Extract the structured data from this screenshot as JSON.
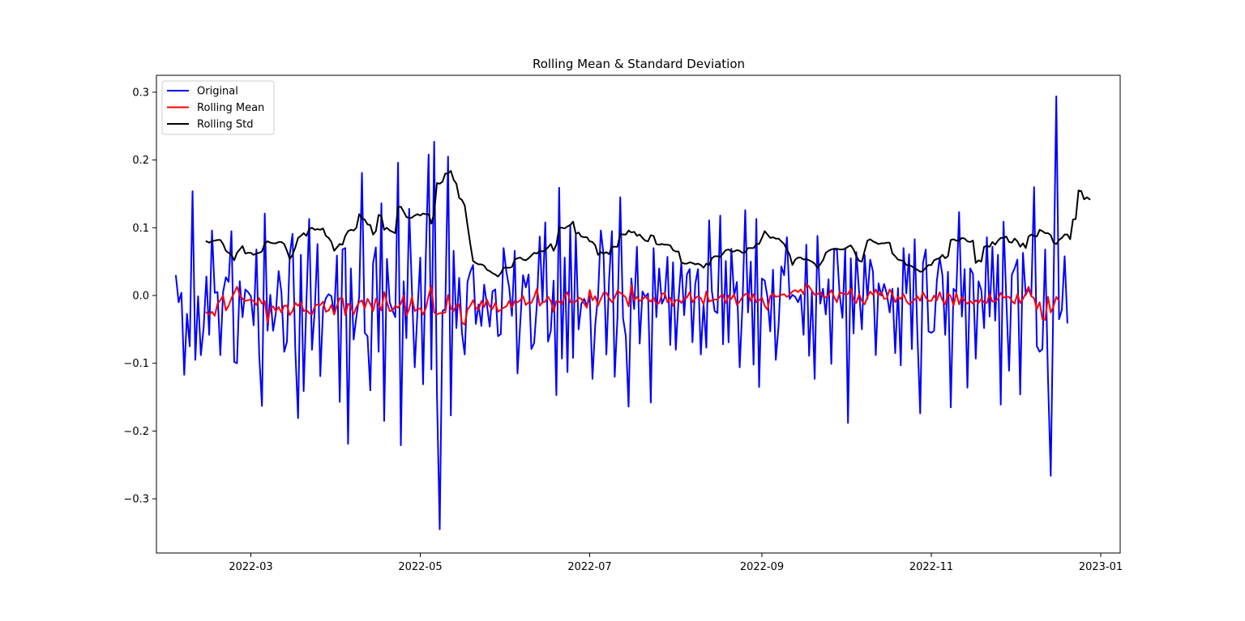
{
  "chart_data": {
    "type": "line",
    "title": "Rolling Mean & Standard Deviation",
    "xlabel": "",
    "ylabel": "",
    "x_start": "2022-02-02",
    "x_end": "2022-12-31",
    "xlim": [
      "2022-01-26",
      "2023-01-08"
    ],
    "ylim": [
      -0.38,
      0.325
    ],
    "xticks": [
      "2022-03",
      "2022-05",
      "2022-07",
      "2022-09",
      "2022-11",
      "2023-01"
    ],
    "yticks": [
      -0.3,
      -0.2,
      -0.1,
      0.0,
      0.1,
      0.2,
      0.3
    ],
    "ytick_labels": [
      "−0.3",
      "−0.2",
      "−0.1",
      "0.0",
      "0.1",
      "0.2",
      "0.3"
    ],
    "grid": false,
    "legend_position": "upper-left",
    "rolling_window": 12,
    "series": [
      {
        "name": "Original",
        "color": "#0000ff",
        "values": [
          0.029,
          -0.01,
          0.004,
          -0.117,
          -0.027,
          -0.075,
          0.154,
          -0.095,
          -0.001,
          -0.088,
          -0.047,
          0.028,
          -0.058,
          0.096,
          0.004,
          0.005,
          -0.088,
          0.005,
          0.027,
          0.02,
          0.095,
          -0.098,
          -0.1,
          0.021,
          -0.032,
          0.009,
          0.005,
          -0.001,
          -0.044,
          0.068,
          -0.087,
          -0.163,
          0.121,
          -0.052,
          0.001,
          -0.052,
          -0.026,
          0.036,
          0.005,
          -0.083,
          -0.068,
          0.06,
          0.091,
          -0.08,
          -0.181,
          0.06,
          -0.141,
          -0.01,
          0.113,
          -0.08,
          -0.022,
          0.076,
          -0.119,
          -0.019,
          -0.004,
          0.002,
          -0.001,
          -0.028,
          0.059,
          -0.157,
          0.068,
          0.07,
          -0.219,
          0.04,
          -0.065,
          -0.031,
          -0.002,
          0.181,
          -0.055,
          -0.06,
          -0.14,
          0.047,
          0.071,
          -0.083,
          0.136,
          -0.185,
          0.054,
          -0.01,
          -0.022,
          -0.032,
          0.196,
          -0.221,
          0.021,
          -0.063,
          0.128,
          0.007,
          -0.106,
          -0.023,
          0.056,
          -0.131,
          0.059,
          0.208,
          -0.109,
          0.227,
          -0.145,
          -0.345,
          -0.023,
          -0.02,
          0.205,
          -0.177,
          0.066,
          -0.048,
          0.026,
          -0.055,
          -0.087,
          0.02,
          0.035,
          0.045,
          -0.042,
          -0.013,
          -0.045,
          0.016,
          -0.014,
          -0.046,
          0.006,
          0.009,
          -0.06,
          -0.057,
          0.07,
          0.035,
          0.012,
          -0.03,
          0.066,
          -0.115,
          -0.04,
          0.03,
          0.012,
          0.031,
          -0.079,
          -0.07,
          -0.012,
          0.087,
          -0.01,
          0.108,
          -0.068,
          -0.052,
          0.022,
          -0.147,
          0.159,
          -0.093,
          0.056,
          -0.113,
          0.104,
          -0.092,
          0.09,
          -0.05,
          -0.012,
          -0.005,
          -0.015,
          -0.001,
          -0.123,
          -0.043,
          -0.001,
          0.096,
          0.06,
          -0.087,
          0.025,
          0.095,
          -0.12,
          -0.032,
          0.145,
          -0.033,
          -0.06,
          -0.164,
          0.025,
          -0.02,
          0.072,
          -0.071,
          0.006,
          -0.002,
          0.003,
          -0.158,
          0.07,
          -0.032,
          0.04,
          -0.012,
          -0.003,
          0.057,
          -0.073,
          0.049,
          -0.08,
          -0.005,
          0.049,
          -0.029,
          0.031,
          0.039,
          -0.069,
          0.017,
          0.039,
          -0.087,
          -0.012,
          -0.077,
          0.111,
          0.006,
          -0.023,
          -0.026,
          0.118,
          -0.072,
          0.051,
          -0.069,
          0.069,
          -0.001,
          0.02,
          -0.106,
          -0.014,
          0.126,
          -0.025,
          0.05,
          -0.102,
          0.113,
          -0.135,
          0.025,
          0.022,
          -0.002,
          -0.053,
          0.038,
          -0.095,
          -0.045,
          0.043,
          0.03,
          0.086,
          -0.005,
          0.001,
          -0.002,
          -0.01,
          0.001,
          -0.058,
          0.075,
          -0.089,
          0.005,
          -0.123,
          0.088,
          -0.012,
          0.01,
          -0.028,
          0.024,
          -0.101,
          0.068,
          0.068,
          0.001,
          -0.033,
          0.07,
          -0.188,
          0.055,
          -0.056,
          0.064,
          0.005,
          -0.05,
          0.06,
          -0.005,
          0.053,
          0.035,
          -0.088,
          0.018,
          0.0,
          0.017,
          0.002,
          -0.025,
          0.01,
          -0.085,
          0.011,
          -0.103,
          0.07,
          0.003,
          0.061,
          -0.079,
          0.083,
          -0.058,
          -0.174,
          0.048,
          0.068,
          -0.053,
          -0.055,
          -0.052,
          0.022,
          0.056,
          0.03,
          -0.058,
          0.035,
          -0.165,
          0.01,
          0.005,
          0.123,
          -0.031,
          0.039,
          -0.136,
          0.04,
          0.032,
          -0.093,
          0.021,
          0.008,
          -0.048,
          0.086,
          -0.031,
          0.072,
          -0.037,
          0.06,
          -0.161,
          0.109,
          -0.005,
          -0.111,
          0.031,
          0.04,
          0.053,
          -0.146,
          0.063,
          0.001,
          0.01,
          -0.001,
          0.16,
          -0.075,
          -0.083,
          -0.079,
          0.068,
          -0.12,
          -0.266,
          0.011,
          0.294,
          -0.035,
          -0.021,
          0.058,
          -0.04
        ]
      },
      {
        "name": "Rolling Mean",
        "color": "#ff0000",
        "values": [
          null,
          null,
          null,
          null,
          null,
          null,
          null,
          null,
          null,
          null,
          null,
          -0.025,
          -0.028,
          -0.024,
          -0.03,
          -0.012,
          -0.007,
          0.0,
          -0.022,
          -0.015,
          -0.004,
          0.004,
          0.013,
          0.001,
          -0.005,
          -0.008,
          -0.007,
          -0.006,
          -0.008,
          -0.014,
          -0.004,
          -0.012,
          -0.008,
          -0.04,
          -0.019,
          -0.016,
          -0.023,
          -0.017,
          -0.025,
          -0.015,
          -0.015,
          -0.029,
          -0.023,
          -0.011,
          -0.015,
          -0.01,
          -0.023,
          -0.021,
          -0.026,
          -0.028,
          -0.016,
          -0.013,
          -0.014,
          -0.009,
          -0.024,
          -0.022,
          -0.014,
          -0.028,
          -0.015,
          -0.004,
          -0.004,
          -0.029,
          -0.012,
          -0.016,
          -0.028,
          -0.017,
          -0.01,
          -0.007,
          -0.019,
          -0.005,
          -0.012,
          -0.023,
          -0.005,
          -0.013,
          -0.022,
          0.005,
          -0.01,
          -0.023,
          -0.022,
          -0.015,
          -0.018,
          -0.012,
          0.0,
          -0.03,
          -0.02,
          -0.002,
          -0.023,
          -0.02,
          -0.019,
          -0.028,
          -0.019,
          0.0,
          0.014,
          -0.025,
          -0.028,
          -0.026,
          -0.026,
          -0.025,
          0.001,
          -0.019,
          -0.023,
          -0.014,
          -0.013,
          -0.04,
          -0.043,
          -0.021,
          -0.015,
          -0.007,
          -0.018,
          -0.021,
          -0.008,
          -0.017,
          -0.006,
          -0.016,
          -0.02,
          -0.011,
          -0.024,
          -0.021,
          -0.018,
          -0.016,
          -0.008,
          -0.018,
          -0.008,
          -0.01,
          -0.007,
          -0.001,
          -0.014,
          -0.01,
          -0.011,
          -0.002,
          0.01,
          -0.015,
          -0.01,
          -0.009,
          -0.002,
          -0.008,
          -0.024,
          -0.008,
          -0.009,
          -0.013,
          -0.001,
          0.005,
          -0.01,
          -0.01,
          -0.009,
          -0.003,
          -0.005,
          -0.012,
          -0.018,
          0.008,
          -0.007,
          -0.001,
          -0.015,
          -0.005,
          0.004,
          0.004,
          -0.004,
          -0.01,
          -0.003,
          0.007,
          0.004,
          0.001,
          -0.003,
          -0.016,
          0.015,
          -0.007,
          -0.002,
          -0.008,
          -0.006,
          -0.001,
          -0.006,
          -0.009,
          -0.003,
          -0.013,
          -0.011,
          0.002,
          0.004,
          -0.01,
          -0.003,
          -0.015,
          -0.007,
          -0.006,
          -0.011,
          -0.004,
          -0.003,
          0.005,
          -0.01,
          -0.004,
          -0.001,
          -0.004,
          -0.013,
          0.006,
          -0.009,
          -0.007,
          -0.006,
          -0.006,
          -0.001,
          0.001,
          -0.011,
          0.0,
          -0.005,
          0.002,
          -0.014,
          -0.009,
          -0.002,
          0.002,
          0.003,
          -0.008,
          0.002,
          -0.01,
          -0.007,
          -0.003,
          -0.015,
          -0.021,
          -0.001,
          0.003,
          -0.002,
          -0.001,
          0.001,
          0.002,
          -0.002,
          0.001,
          0.006,
          0.008,
          0.005,
          0.009,
          0.002,
          0.017,
          0.013,
          0.007,
          0.001,
          0.002,
          0.005,
          -0.001,
          -0.003,
          0.001,
          0.008,
          -0.002,
          -0.01,
          0.005,
          0.003,
          0.002,
          0.002,
          0.01,
          -0.006,
          -0.011,
          0.002,
          -0.008,
          -0.013,
          -0.002,
          0.006,
          0.001,
          0.009,
          0.0,
          0.005,
          -0.005,
          -0.004,
          0.009,
          0.002,
          -0.01,
          -0.002,
          -0.005,
          0.002,
          -0.008,
          -0.013,
          -0.01,
          -0.006,
          -0.001,
          -0.008,
          0.005,
          -0.003,
          -0.008,
          -0.008,
          0.0,
          -0.007,
          0.005,
          -0.007,
          -0.013,
          0.003,
          -0.001,
          -0.015,
          0.004,
          -0.013,
          -0.002,
          -0.008,
          -0.012,
          -0.008,
          -0.012,
          -0.007,
          -0.011,
          -0.005,
          -0.01,
          -0.011,
          0.002,
          -0.009,
          -0.008,
          -0.005,
          0.004,
          -0.003,
          -0.002,
          -0.002,
          -0.008,
          -0.012,
          0.002,
          -0.011,
          -0.005,
          0.003,
          0.013,
          -0.001,
          -0.004,
          -0.02,
          -0.01,
          -0.035,
          -0.036,
          -0.002,
          -0.025,
          -0.016,
          -0.002,
          -0.008
        ]
      },
      {
        "name": "Rolling Std",
        "color": "#000000",
        "values": [
          null,
          null,
          null,
          null,
          null,
          null,
          null,
          null,
          null,
          null,
          null,
          0.08,
          0.078,
          0.08,
          0.081,
          0.082,
          0.082,
          0.076,
          0.066,
          0.063,
          0.06,
          0.052,
          0.063,
          0.068,
          0.073,
          0.062,
          0.063,
          0.063,
          0.06,
          0.062,
          0.063,
          0.065,
          0.077,
          0.08,
          0.078,
          0.077,
          0.077,
          0.079,
          0.079,
          0.076,
          0.066,
          0.054,
          0.06,
          0.071,
          0.085,
          0.088,
          0.092,
          0.088,
          0.098,
          0.1,
          0.097,
          0.098,
          0.097,
          0.099,
          0.088,
          0.085,
          0.079,
          0.066,
          0.071,
          0.076,
          0.075,
          0.088,
          0.095,
          0.097,
          0.096,
          0.1,
          0.12,
          0.114,
          0.112,
          0.105,
          0.104,
          0.09,
          0.095,
          0.119,
          0.117,
          0.097,
          0.1,
          0.096,
          0.094,
          0.092,
          0.131,
          0.131,
          0.124,
          0.116,
          0.114,
          0.115,
          0.118,
          0.12,
          0.118,
          0.121,
          0.12,
          0.12,
          0.106,
          0.122,
          0.166,
          0.165,
          0.168,
          0.18,
          0.18,
          0.184,
          0.171,
          0.165,
          0.144,
          0.141,
          0.133,
          0.104,
          0.076,
          0.051,
          0.048,
          0.046,
          0.046,
          0.044,
          0.038,
          0.036,
          0.033,
          0.031,
          0.028,
          0.033,
          0.041,
          0.041,
          0.041,
          0.042,
          0.053,
          0.055,
          0.056,
          0.053,
          0.052,
          0.055,
          0.059,
          0.063,
          0.062,
          0.066,
          0.065,
          0.067,
          0.071,
          0.076,
          0.066,
          0.075,
          0.1,
          0.1,
          0.099,
          0.102,
          0.104,
          0.109,
          0.091,
          0.093,
          0.087,
          0.086,
          0.086,
          0.08,
          0.079,
          0.074,
          0.06,
          0.064,
          0.062,
          0.064,
          0.061,
          0.072,
          0.072,
          0.072,
          0.091,
          0.09,
          0.09,
          0.096,
          0.093,
          0.094,
          0.088,
          0.09,
          0.085,
          0.081,
          0.08,
          0.089,
          0.088,
          0.076,
          0.075,
          0.076,
          0.075,
          0.075,
          0.074,
          0.067,
          0.065,
          0.065,
          0.049,
          0.047,
          0.047,
          0.049,
          0.048,
          0.046,
          0.047,
          0.045,
          0.041,
          0.047,
          0.045,
          0.055,
          0.058,
          0.058,
          0.057,
          0.062,
          0.067,
          0.068,
          0.065,
          0.065,
          0.067,
          0.066,
          0.063,
          0.064,
          0.07,
          0.07,
          0.07,
          0.076,
          0.076,
          0.085,
          0.095,
          0.09,
          0.085,
          0.086,
          0.084,
          0.084,
          0.08,
          0.076,
          0.068,
          0.06,
          0.045,
          0.053,
          0.056,
          0.056,
          0.053,
          0.054,
          0.052,
          0.05,
          0.047,
          0.041,
          0.046,
          0.052,
          0.063,
          0.066,
          0.068,
          0.069,
          0.069,
          0.068,
          0.068,
          0.069,
          0.072,
          0.074,
          0.068,
          0.058,
          0.051,
          0.05,
          0.066,
          0.081,
          0.083,
          0.08,
          0.078,
          0.076,
          0.077,
          0.077,
          0.078,
          0.078,
          0.062,
          0.058,
          0.053,
          0.052,
          0.051,
          0.045,
          0.045,
          0.043,
          0.04,
          0.038,
          0.035,
          0.036,
          0.041,
          0.045,
          0.045,
          0.052,
          0.054,
          0.055,
          0.06,
          0.055,
          0.058,
          0.082,
          0.083,
          0.081,
          0.081,
          0.085,
          0.084,
          0.08,
          0.079,
          0.081,
          0.048,
          0.052,
          0.05,
          0.072,
          0.073,
          0.072,
          0.079,
          0.075,
          0.081,
          0.085,
          0.085,
          0.087,
          0.079,
          0.078,
          0.084,
          0.08,
          0.072,
          0.077,
          0.07,
          0.087,
          0.09,
          0.088,
          0.087,
          0.097,
          0.095,
          0.092,
          0.092,
          0.089,
          0.078,
          0.076,
          0.082,
          0.085,
          0.09,
          0.09,
          0.083,
          0.112,
          0.113,
          0.155,
          0.154,
          0.142,
          0.145,
          0.142
        ]
      }
    ]
  }
}
